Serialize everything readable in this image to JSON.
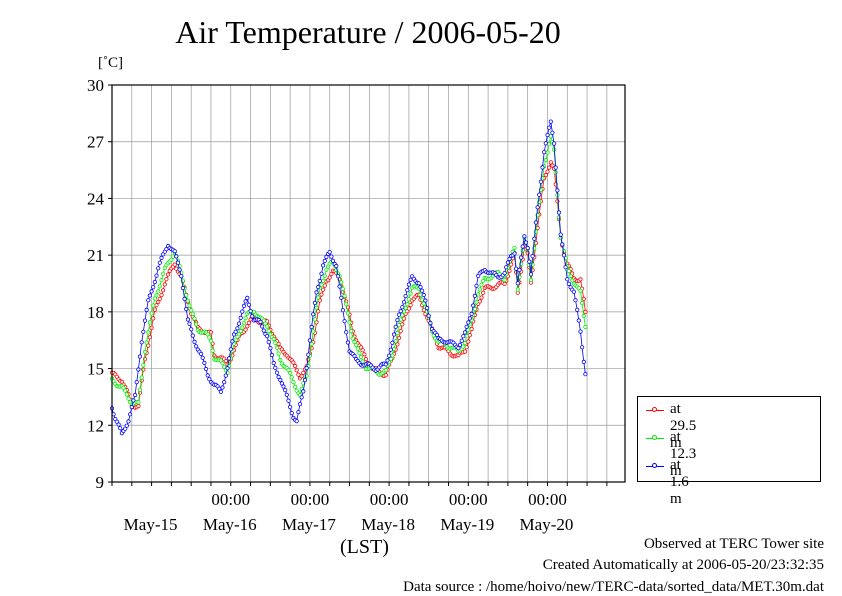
{
  "chart_data": {
    "type": "line",
    "title": "Air Temperature / 2006-05-20",
    "ylabel": "[˚C]",
    "xlabel": "(LST)",
    "ylim": [
      9,
      30
    ],
    "yticks": [
      9,
      12,
      15,
      18,
      21,
      24,
      27,
      30
    ],
    "xlim": [
      "2006-05-14T12:00",
      "2006-05-20T23:30"
    ],
    "time_ticks": [
      "00:00",
      "00:00",
      "00:00",
      "00:00",
      "00:00"
    ],
    "day_labels": [
      "May-15",
      "May-16",
      "May-17",
      "May-18",
      "May-19",
      "May-20"
    ],
    "grid": true,
    "legend_position": "right",
    "series": [
      {
        "name": "at 29.5 m",
        "color": "#ff0000",
        "points": [
          [
            "2006-05-14T12:00",
            14.7
          ],
          [
            "2006-05-14T15:00",
            14.4
          ],
          [
            "2006-05-14T18:00",
            13.1
          ],
          [
            "2006-05-14T20:00",
            13.0
          ],
          [
            "2006-05-14T22:00",
            15.5
          ],
          [
            "2006-05-15T01:00",
            18.0
          ],
          [
            "2006-05-15T04:00",
            19.5
          ],
          [
            "2006-05-15T07:00",
            20.6
          ],
          [
            "2006-05-15T09:00",
            19.8
          ],
          [
            "2006-05-15T12:00",
            18.0
          ],
          [
            "2006-05-15T14:00",
            17.1
          ],
          [
            "2006-05-15T16:00",
            17.0
          ],
          [
            "2006-05-15T18:00",
            16.8
          ],
          [
            "2006-05-15T19:00",
            15.7
          ],
          [
            "2006-05-15T21:00",
            15.6
          ],
          [
            "2006-05-15T23:00",
            15.2
          ],
          [
            "2006-05-16T01:00",
            16.0
          ],
          [
            "2006-05-16T03:00",
            16.8
          ],
          [
            "2006-05-16T05:00",
            17.3
          ],
          [
            "2006-05-16T07:00",
            17.7
          ],
          [
            "2006-05-16T09:00",
            17.5
          ],
          [
            "2006-05-16T11:00",
            17.4
          ],
          [
            "2006-05-16T13:00",
            16.8
          ],
          [
            "2006-05-16T15:00",
            16.0
          ],
          [
            "2006-05-16T17:00",
            15.8
          ],
          [
            "2006-05-16T19:00",
            15.2
          ],
          [
            "2006-05-16T21:00",
            14.6
          ],
          [
            "2006-05-16T23:00",
            15.0
          ],
          [
            "2006-05-17T01:00",
            16.5
          ],
          [
            "2006-05-17T03:00",
            18.5
          ],
          [
            "2006-05-17T05:00",
            19.7
          ],
          [
            "2006-05-17T07:00",
            20.1
          ],
          [
            "2006-05-17T09:00",
            19.8
          ],
          [
            "2006-05-17T11:00",
            18.5
          ],
          [
            "2006-05-17T13:00",
            17.0
          ],
          [
            "2006-05-17T15:00",
            16.2
          ],
          [
            "2006-05-17T17:00",
            15.5
          ],
          [
            "2006-05-17T19:00",
            15.0
          ],
          [
            "2006-05-17T21:00",
            14.8
          ],
          [
            "2006-05-17T23:00",
            14.7
          ],
          [
            "2006-05-18T01:00",
            15.5
          ],
          [
            "2006-05-18T03:00",
            16.7
          ],
          [
            "2006-05-18T05:00",
            17.8
          ],
          [
            "2006-05-18T07:00",
            18.7
          ],
          [
            "2006-05-18T09:00",
            18.8
          ],
          [
            "2006-05-18T11:00",
            18.0
          ],
          [
            "2006-05-18T13:00",
            17.0
          ],
          [
            "2006-05-18T15:00",
            16.2
          ],
          [
            "2006-05-18T17:00",
            16.0
          ],
          [
            "2006-05-18T19:00",
            15.8
          ],
          [
            "2006-05-18T21:00",
            15.6
          ],
          [
            "2006-05-18T23:00",
            16.0
          ],
          [
            "2006-05-19T01:00",
            17.0
          ],
          [
            "2006-05-19T03:00",
            18.5
          ],
          [
            "2006-05-19T05:00",
            19.2
          ],
          [
            "2006-05-19T07:00",
            19.3
          ],
          [
            "2006-05-19T09:00",
            19.4
          ],
          [
            "2006-05-19T11:00",
            19.5
          ],
          [
            "2006-05-19T13:00",
            20.5
          ],
          [
            "2006-05-19T14:00",
            21.0
          ],
          [
            "2006-05-19T15:00",
            19.0
          ],
          [
            "2006-05-19T17:00",
            21.5
          ],
          [
            "2006-05-19T18:00",
            21.0
          ],
          [
            "2006-05-19T19:00",
            19.5
          ],
          [
            "2006-05-19T21:00",
            22.5
          ],
          [
            "2006-05-19T23:00",
            25.0
          ],
          [
            "2006-05-20T01:00",
            26.0
          ],
          [
            "2006-05-20T02:00",
            25.5
          ],
          [
            "2006-05-20T04:00",
            22.0
          ],
          [
            "2006-05-20T06:00",
            20.5
          ],
          [
            "2006-05-20T08:00",
            19.8
          ],
          [
            "2006-05-20T10:00",
            19.7
          ],
          [
            "2006-05-20T11:30",
            18.0
          ]
        ]
      },
      {
        "name": "at 12.3 m",
        "color": "#00ee00",
        "points": [
          [
            "2006-05-14T12:00",
            14.4
          ],
          [
            "2006-05-14T15:00",
            14.0
          ],
          [
            "2006-05-14T18:00",
            13.2
          ],
          [
            "2006-05-14T20:00",
            13.1
          ],
          [
            "2006-05-14T22:00",
            16.0
          ],
          [
            "2006-05-15T01:00",
            18.7
          ],
          [
            "2006-05-15T04:00",
            20.2
          ],
          [
            "2006-05-15T07:00",
            21.2
          ],
          [
            "2006-05-15T09:00",
            20.0
          ],
          [
            "2006-05-15T12:00",
            18.0
          ],
          [
            "2006-05-15T14:00",
            17.1
          ],
          [
            "2006-05-15T16:00",
            16.9
          ],
          [
            "2006-05-15T18:00",
            16.5
          ],
          [
            "2006-05-15T19:00",
            15.6
          ],
          [
            "2006-05-15T21:00",
            15.3
          ],
          [
            "2006-05-15T23:00",
            14.9
          ],
          [
            "2006-05-16T01:00",
            16.2
          ],
          [
            "2006-05-16T03:00",
            17.1
          ],
          [
            "2006-05-16T05:00",
            17.8
          ],
          [
            "2006-05-16T07:00",
            18.1
          ],
          [
            "2006-05-16T09:00",
            17.6
          ],
          [
            "2006-05-16T11:00",
            17.3
          ],
          [
            "2006-05-16T13:00",
            16.5
          ],
          [
            "2006-05-16T15:00",
            15.5
          ],
          [
            "2006-05-16T17:00",
            15.0
          ],
          [
            "2006-05-16T19:00",
            14.3
          ],
          [
            "2006-05-16T21:00",
            13.6
          ],
          [
            "2006-05-16T23:00",
            14.6
          ],
          [
            "2006-05-17T01:00",
            17.0
          ],
          [
            "2006-05-17T03:00",
            19.2
          ],
          [
            "2006-05-17T05:00",
            20.3
          ],
          [
            "2006-05-17T07:00",
            20.6
          ],
          [
            "2006-05-17T09:00",
            20.0
          ],
          [
            "2006-05-17T11:00",
            18.3
          ],
          [
            "2006-05-17T13:00",
            16.7
          ],
          [
            "2006-05-17T15:00",
            15.7
          ],
          [
            "2006-05-17T17:00",
            15.1
          ],
          [
            "2006-05-17T19:00",
            14.9
          ],
          [
            "2006-05-17T21:00",
            14.8
          ],
          [
            "2006-05-17T23:00",
            14.8
          ],
          [
            "2006-05-18T01:00",
            15.8
          ],
          [
            "2006-05-18T03:00",
            17.2
          ],
          [
            "2006-05-18T05:00",
            18.3
          ],
          [
            "2006-05-18T07:00",
            19.2
          ],
          [
            "2006-05-18T09:00",
            19.3
          ],
          [
            "2006-05-18T11:00",
            18.2
          ],
          [
            "2006-05-18T13:00",
            17.0
          ],
          [
            "2006-05-18T15:00",
            16.4
          ],
          [
            "2006-05-18T17:00",
            16.3
          ],
          [
            "2006-05-18T19:00",
            16.1
          ],
          [
            "2006-05-18T21:00",
            15.9
          ],
          [
            "2006-05-18T23:00",
            16.4
          ],
          [
            "2006-05-19T01:00",
            17.5
          ],
          [
            "2006-05-19T03:00",
            19.0
          ],
          [
            "2006-05-19T05:00",
            19.7
          ],
          [
            "2006-05-19T07:00",
            19.9
          ],
          [
            "2006-05-19T09:00",
            20.0
          ],
          [
            "2006-05-19T11:00",
            19.8
          ],
          [
            "2006-05-19T13:00",
            20.8
          ],
          [
            "2006-05-19T14:00",
            21.4
          ],
          [
            "2006-05-19T15:00",
            19.3
          ],
          [
            "2006-05-19T17:00",
            21.8
          ],
          [
            "2006-05-19T18:00",
            21.3
          ],
          [
            "2006-05-19T19:00",
            19.8
          ],
          [
            "2006-05-19T21:00",
            23.0
          ],
          [
            "2006-05-19T23:00",
            25.8
          ],
          [
            "2006-05-20T01:00",
            27.2
          ],
          [
            "2006-05-20T02:00",
            26.5
          ],
          [
            "2006-05-20T04:00",
            22.0
          ],
          [
            "2006-05-20T06:00",
            20.3
          ],
          [
            "2006-05-20T08:00",
            19.6
          ],
          [
            "2006-05-20T10:00",
            19.0
          ],
          [
            "2006-05-20T11:30",
            17.2
          ]
        ]
      },
      {
        "name": "at 1.6 m",
        "color": "#0000ff",
        "points": [
          [
            "2006-05-14T12:00",
            13.0
          ],
          [
            "2006-05-14T13:00",
            12.4
          ],
          [
            "2006-05-14T15:00",
            11.5
          ],
          [
            "2006-05-14T17:00",
            12.3
          ],
          [
            "2006-05-14T19:00",
            13.5
          ],
          [
            "2006-05-14T21:00",
            16.5
          ],
          [
            "2006-05-14T23:00",
            18.5
          ],
          [
            "2006-05-15T02:00",
            20.3
          ],
          [
            "2006-05-15T05:00",
            21.6
          ],
          [
            "2006-05-15T07:00",
            21.1
          ],
          [
            "2006-05-15T09:00",
            20.0
          ],
          [
            "2006-05-15T11:00",
            17.5
          ],
          [
            "2006-05-15T13:00",
            16.5
          ],
          [
            "2006-05-15T15:00",
            15.7
          ],
          [
            "2006-05-15T17:00",
            14.7
          ],
          [
            "2006-05-15T19:00",
            14.1
          ],
          [
            "2006-05-15T21:00",
            13.8
          ],
          [
            "2006-05-15T23:00",
            15.0
          ],
          [
            "2006-05-16T01:00",
            16.8
          ],
          [
            "2006-05-16T03:00",
            17.7
          ],
          [
            "2006-05-16T05:00",
            18.7
          ],
          [
            "2006-05-16T07:00",
            17.6
          ],
          [
            "2006-05-16T09:00",
            17.4
          ],
          [
            "2006-05-16T11:00",
            16.8
          ],
          [
            "2006-05-16T13:00",
            15.2
          ],
          [
            "2006-05-16T15:00",
            14.5
          ],
          [
            "2006-05-16T17:00",
            13.5
          ],
          [
            "2006-05-16T19:00",
            12.5
          ],
          [
            "2006-05-16T20:00",
            12.2
          ],
          [
            "2006-05-16T22:00",
            13.8
          ],
          [
            "2006-05-17T00:00",
            16.5
          ],
          [
            "2006-05-17T02:00",
            19.0
          ],
          [
            "2006-05-17T04:00",
            20.5
          ],
          [
            "2006-05-17T06:00",
            21.1
          ],
          [
            "2006-05-17T08:00",
            20.5
          ],
          [
            "2006-05-17T10:00",
            18.0
          ],
          [
            "2006-05-17T12:00",
            16.0
          ],
          [
            "2006-05-17T14:00",
            15.4
          ],
          [
            "2006-05-17T17:00",
            15.2
          ],
          [
            "2006-05-17T20:00",
            15.0
          ],
          [
            "2006-05-17T23:00",
            15.2
          ],
          [
            "2006-05-18T01:00",
            16.4
          ],
          [
            "2006-05-18T03:00",
            17.8
          ],
          [
            "2006-05-18T05:00",
            18.9
          ],
          [
            "2006-05-18T07:00",
            19.8
          ],
          [
            "2006-05-18T09:00",
            19.6
          ],
          [
            "2006-05-18T11:00",
            18.5
          ],
          [
            "2006-05-18T13:00",
            17.2
          ],
          [
            "2006-05-18T15:00",
            16.5
          ],
          [
            "2006-05-18T17:00",
            16.5
          ],
          [
            "2006-05-18T19:00",
            16.3
          ],
          [
            "2006-05-18T21:00",
            16.2
          ],
          [
            "2006-05-18T23:00",
            16.8
          ],
          [
            "2006-05-19T01:00",
            18.0
          ],
          [
            "2006-05-19T03:00",
            19.8
          ],
          [
            "2006-05-19T05:00",
            20.3
          ],
          [
            "2006-05-19T07:00",
            20.0
          ],
          [
            "2006-05-19T09:00",
            19.9
          ],
          [
            "2006-05-19T11:00",
            20.0
          ],
          [
            "2006-05-19T13:00",
            21.0
          ],
          [
            "2006-05-19T14:00",
            21.2
          ],
          [
            "2006-05-19T15:00",
            19.5
          ],
          [
            "2006-05-19T17:00",
            22.0
          ],
          [
            "2006-05-19T18:00",
            21.5
          ],
          [
            "2006-05-19T19:00",
            20.0
          ],
          [
            "2006-05-19T21:00",
            23.5
          ],
          [
            "2006-05-19T23:00",
            26.5
          ],
          [
            "2006-05-20T01:00",
            28.0
          ],
          [
            "2006-05-20T02:00",
            27.0
          ],
          [
            "2006-05-20T04:00",
            22.0
          ],
          [
            "2006-05-20T06:00",
            19.8
          ],
          [
            "2006-05-20T08:00",
            19.0
          ],
          [
            "2006-05-20T10:00",
            17.0
          ],
          [
            "2006-05-20T11:30",
            14.7
          ]
        ]
      }
    ]
  },
  "annotations": {
    "observed": "Observed at TERC Tower site",
    "created": "Created Automatically at 2006-05-20/23:32:35",
    "source": "Data source : /home/hoivo/new/TERC-data/sorted_data/MET.30m.dat"
  }
}
